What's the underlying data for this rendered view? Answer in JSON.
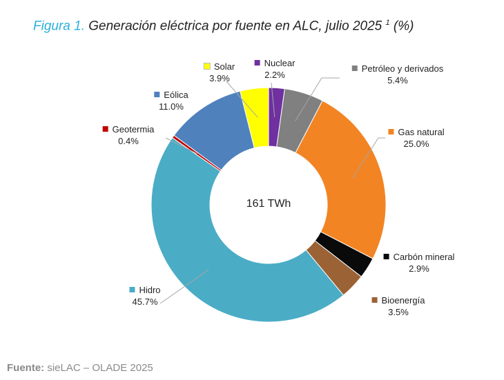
{
  "chart_data": {
    "type": "pie",
    "variant": "donut",
    "title_prefix": "Figura 1.",
    "title": "Generación eléctrica por fuente en ALC, julio 2025",
    "title_footnote": "1",
    "title_suffix": "(%)",
    "center_label": "161 TWh",
    "start": "12 o'clock, clockwise",
    "slices": [
      {
        "name": "Nuclear",
        "value": 2.2,
        "label": "2.2%",
        "color": "#7030a0"
      },
      {
        "name": "Petróleo y derivados",
        "value": 5.4,
        "label": "5.4%",
        "color": "#808080"
      },
      {
        "name": "Gas natural",
        "value": 25.0,
        "label": "25.0%",
        "color": "#f28424"
      },
      {
        "name": "Carbón mineral",
        "value": 2.9,
        "label": "2.9%",
        "color": "#0a0a0a"
      },
      {
        "name": "Bioenergía",
        "value": 3.5,
        "label": "3.5%",
        "color": "#9b6235"
      },
      {
        "name": "Hidro",
        "value": 45.7,
        "label": "45.7%",
        "color": "#4bacc6"
      },
      {
        "name": "Geotermia",
        "value": 0.4,
        "label": "0.4%",
        "color": "#c00000"
      },
      {
        "name": "Eólica",
        "value": 11.0,
        "label": "11.0%",
        "color": "#4f81bd"
      },
      {
        "name": "Solar",
        "value": 3.9,
        "label": "3.9%",
        "color": "#ffff00"
      }
    ]
  },
  "source": {
    "label": "Fuente:",
    "text": "sieLAC – OLADE 2025"
  }
}
